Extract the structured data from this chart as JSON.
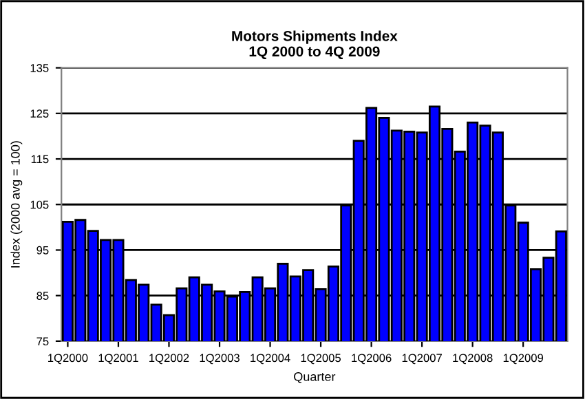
{
  "chart_data": {
    "type": "bar",
    "title": "Motors Shipments Index\n1Q 2000 to 4Q 2009",
    "xlabel": "Quarter",
    "ylabel": "Index (2000 avg = 100)",
    "categories": [
      "1Q2000",
      null,
      null,
      null,
      "1Q2001",
      null,
      null,
      null,
      "1Q2002",
      null,
      null,
      null,
      "1Q2003",
      null,
      null,
      null,
      "1Q2004",
      null,
      null,
      null,
      "1Q2005",
      null,
      null,
      null,
      "1Q2006",
      null,
      null,
      null,
      "1Q2007",
      null,
      null,
      null,
      "1Q2008",
      null,
      null,
      null,
      "1Q2009",
      null,
      null,
      null
    ],
    "values": [
      101.2,
      101.6,
      99.2,
      97.2,
      97.2,
      88.4,
      87.4,
      83.0,
      80.7,
      86.6,
      89.0,
      87.4,
      85.9,
      84.8,
      85.8,
      89.0,
      86.6,
      92.0,
      89.2,
      90.6,
      86.4,
      91.4,
      104.8,
      119.0,
      126.2,
      124.0,
      121.2,
      121.0,
      120.8,
      126.5,
      121.6,
      116.6,
      123.0,
      122.3,
      120.8,
      104.8,
      101.0,
      90.8,
      93.3,
      99.1
    ],
    "color": "#0000ff",
    "ylim": [
      75,
      135
    ],
    "yticks": [
      75,
      85,
      95,
      105,
      115,
      125,
      135
    ],
    "grid": "y"
  }
}
